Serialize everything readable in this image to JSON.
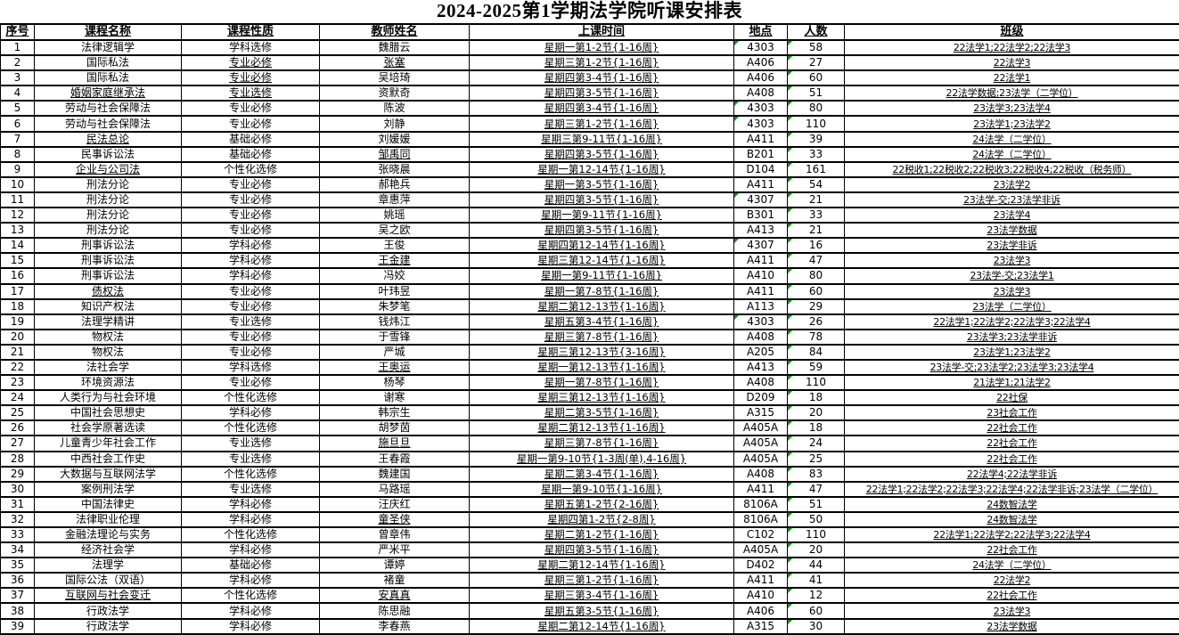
{
  "title": "2024-2025第1学期法学院听课安排表",
  "colors": {
    "flag_green": "#109410",
    "border": "#000000",
    "background": "#ffffff"
  },
  "table": {
    "headers": [
      "序号",
      "课程名称",
      "课程性质",
      "教师姓名",
      "上课时间",
      "地点",
      "人数",
      "班级"
    ],
    "rows": [
      {
        "no": "1",
        "course": "法律逻辑学",
        "nature": "学科选修",
        "teacher": "魏腊云",
        "time": "星期一第1-2节{1-16周}",
        "room": "4303",
        "count": "58",
        "classes": "22法学1;22法学2;22法学3",
        "rf": true
      },
      {
        "no": "2",
        "course": "国际私法",
        "nature": "专业必修",
        "teacher": "张塞",
        "time": "星期三第1-2节{1-16周}",
        "room": "A406",
        "count": "27",
        "classes": "22法学3",
        "un": true,
        "ut": true
      },
      {
        "no": "3",
        "course": "国际私法",
        "nature": "专业必修",
        "teacher": "吴培琦",
        "time": "星期四第3-4节{1-16周}",
        "room": "A406",
        "count": "60",
        "classes": "22法学1",
        "un": true
      },
      {
        "no": "4",
        "course": "婚姻家庭继承法",
        "nature": "专业选修",
        "teacher": "资默奇",
        "time": "星期四第3-5节{1-16周}",
        "room": "A408",
        "count": "51",
        "classes": "22法学数据;23法学（二学位）",
        "uc": true,
        "un": true
      },
      {
        "no": "5",
        "course": "劳动与社会保障法",
        "nature": "专业必修",
        "teacher": "陈波",
        "time": "星期四第3-4节{1-16周}",
        "room": "4303",
        "count": "80",
        "classes": "23法学3;23法学4",
        "rf": true
      },
      {
        "no": "6",
        "course": "劳动与社会保障法",
        "nature": "专业必修",
        "teacher": "刘静",
        "time": "星期三第1-2节{1-16周}",
        "room": "4303",
        "count": "110",
        "classes": "23法学1;23法学2",
        "rf": true
      },
      {
        "no": "7",
        "course": "民法总论",
        "nature": "基础必修",
        "teacher": "刘媛媛",
        "time": "星期三第9-11节{1-16周}",
        "room": "A411",
        "count": "39",
        "classes": "24法学（二学位）",
        "uc": true
      },
      {
        "no": "8",
        "course": "民事诉讼法",
        "nature": "基础必修",
        "teacher": "邹禹同",
        "time": "星期四第3-5节{1-16周}",
        "room": "B201",
        "count": "33",
        "classes": "24法学（二学位）",
        "ut": true
      },
      {
        "no": "9",
        "course": "企业与公司法",
        "nature": "个性化选修",
        "teacher": "张晓晨",
        "time": "星期一第12-14节{1-16周}",
        "room": "D104",
        "count": "161",
        "classes": "22税收1;22税收2;22税收3;22税收4;22税收（税务师）",
        "uc": true
      },
      {
        "no": "10",
        "course": "刑法分论",
        "nature": "专业必修",
        "teacher": "郝艳兵",
        "time": "星期一第3-5节{1-16周}",
        "room": "A411",
        "count": "54",
        "classes": "23法学2"
      },
      {
        "no": "11",
        "course": "刑法分论",
        "nature": "专业必修",
        "teacher": "章惠萍",
        "time": "星期四第3-5节{1-16周}",
        "room": "4307",
        "count": "21",
        "classes": "23法学-交;23法学非诉",
        "rf": true
      },
      {
        "no": "12",
        "course": "刑法分论",
        "nature": "专业必修",
        "teacher": "姚瑶",
        "time": "星期一第9-11节{1-16周}",
        "room": "B301",
        "count": "33",
        "classes": "23法学4"
      },
      {
        "no": "13",
        "course": "刑法分论",
        "nature": "专业必修",
        "teacher": "吴之欧",
        "time": "星期四第3-5节{1-16周}",
        "room": "A413",
        "count": "21",
        "classes": "23法学数据"
      },
      {
        "no": "14",
        "course": "刑事诉讼法",
        "nature": "学科必修",
        "teacher": "王俊",
        "time": "星期四第12-14节{1-16周}",
        "room": "4307",
        "count": "16",
        "classes": "23法学非诉",
        "rf": true
      },
      {
        "no": "15",
        "course": "刑事诉讼法",
        "nature": "学科必修",
        "teacher": "王金建",
        "time": "星期三第12-14节{1-16周}",
        "room": "A411",
        "count": "47",
        "classes": "23法学3",
        "ut": true
      },
      {
        "no": "16",
        "course": "刑事诉讼法",
        "nature": "学科必修",
        "teacher": "冯姣",
        "time": "星期一第9-11节{1-16周}",
        "room": "A410",
        "count": "80",
        "classes": "23法学-交;23法学1"
      },
      {
        "no": "17",
        "course": "债权法",
        "nature": "专业必修",
        "teacher": "叶玮昱",
        "time": "星期一第7-8节{1-16周}",
        "room": "A411",
        "count": "60",
        "classes": "23法学3",
        "uc": true
      },
      {
        "no": "18",
        "course": "知识产权法",
        "nature": "专业必修",
        "teacher": "朱梦笔",
        "time": "星期二第12-13节{1-16周}",
        "room": "A113",
        "count": "29",
        "classes": "23法学（二学位）"
      },
      {
        "no": "19",
        "course": "法理学精讲",
        "nature": "专业选修",
        "teacher": "钱炜江",
        "time": "星期五第3-4节{1-16周}",
        "room": "4303",
        "count": "26",
        "classes": "22法学1;22法学2;22法学3;22法学4",
        "rf": true
      },
      {
        "no": "20",
        "course": "物权法",
        "nature": "专业必修",
        "teacher": "于雪锋",
        "time": "星期三第7-8节{1-16周}",
        "room": "A408",
        "count": "78",
        "classes": "23法学3;23法学非诉"
      },
      {
        "no": "21",
        "course": "物权法",
        "nature": "专业必修",
        "teacher": "严城",
        "time": "星期三第12-13节{3-16周}",
        "room": "A205",
        "count": "84",
        "classes": "23法学1;23法学2"
      },
      {
        "no": "22",
        "course": "法社会学",
        "nature": "学科选修",
        "teacher": "王奥运",
        "time": "星期一第12-13节{1-16周}",
        "room": "A413",
        "count": "59",
        "classes": "23法学-交;23法学2;23法学3;23法学4",
        "ut": true
      },
      {
        "no": "23",
        "course": "环境资源法",
        "nature": "专业必修",
        "teacher": "杨琴",
        "time": "星期一第7-8节{1-16周}",
        "room": "A408",
        "count": "110",
        "classes": "21法学1;21法学2"
      },
      {
        "no": "24",
        "course": "人类行为与社会环境",
        "nature": "个性化选修",
        "teacher": "谢寒",
        "time": "星期三第12-13节{1-16周}",
        "room": "D209",
        "count": "18",
        "classes": "22社保"
      },
      {
        "no": "25",
        "course": "中国社会思想史",
        "nature": "学科必修",
        "teacher": "韩宗生",
        "time": "星期二第3-5节{1-16周}",
        "room": "A315",
        "count": "20",
        "classes": "23社会工作"
      },
      {
        "no": "26",
        "course": "社会学原著选读",
        "nature": "个性化选修",
        "teacher": "胡梦茵",
        "time": "星期二第12-13节{1-16周}",
        "room": "A405A",
        "count": "18",
        "classes": "22社会工作"
      },
      {
        "no": "27",
        "course": "儿童青少年社会工作",
        "nature": "专业选修",
        "teacher": "施旦旦",
        "time": "星期三第7-8节{1-16周}",
        "room": "A405A",
        "count": "24",
        "classes": "22社会工作",
        "ut": true
      },
      {
        "no": "28",
        "course": "中西社会工作史",
        "nature": "专业选修",
        "teacher": "王春霞",
        "time": "星期一第9-10节{1-3周(单),4-16周}",
        "room": "A405A",
        "count": "25",
        "classes": "22社会工作"
      },
      {
        "no": "29",
        "course": "大数据与互联网法学",
        "nature": "个性化选修",
        "teacher": "魏建国",
        "time": "星期二第3-4节{1-16周}",
        "room": "A408",
        "count": "83",
        "classes": "22法学4;22法学非诉"
      },
      {
        "no": "30",
        "course": "案例刑法学",
        "nature": "专业选修",
        "teacher": "马路瑶",
        "time": "星期一第9-10节{1-16周}",
        "room": "A411",
        "count": "47",
        "classes": "22法学1;22法学2;22法学3;22法学4;22法学非诉;23法学（二学位）"
      },
      {
        "no": "31",
        "course": "中国法律史",
        "nature": "学科必修",
        "teacher": "汪庆红",
        "time": "星期五第1-2节{2-16周}",
        "room": "8106A",
        "count": "51",
        "classes": "24数智法学"
      },
      {
        "no": "32",
        "course": "法律职业伦理",
        "nature": "学科必修",
        "teacher": "童圣侠",
        "time": "星期四第1-2节{2-8周}",
        "room": "8106A",
        "count": "50",
        "classes": "24数智法学",
        "ut": true
      },
      {
        "no": "33",
        "course": "金融法理论与实务",
        "nature": "个性化选修",
        "teacher": "曾章伟",
        "time": "星期二第1-2节{1-16周}",
        "room": "C102",
        "count": "110",
        "classes": "22法学1;22法学2;22法学3;22法学4"
      },
      {
        "no": "34",
        "course": "经济社会学",
        "nature": "学科必修",
        "teacher": "严米平",
        "time": "星期四第3-5节{1-16周}",
        "room": "A405A",
        "count": "20",
        "classes": "22社会工作"
      },
      {
        "no": "35",
        "course": "法理学",
        "nature": "基础必修",
        "teacher": "谭婷",
        "time": "星期二第12-14节{1-16周}",
        "room": "D402",
        "count": "44",
        "classes": "24法学（二学位）"
      },
      {
        "no": "36",
        "course": "国际公法（双语）",
        "nature": "学科必修",
        "teacher": "褚童",
        "time": "星期三第1-2节{1-16周}",
        "room": "A411",
        "count": "41",
        "classes": "22法学2"
      },
      {
        "no": "37",
        "course": "互联网与社会变迁",
        "nature": "个性化选修",
        "teacher": "安真真",
        "time": "星期三第3-4节{1-16周}",
        "room": "A410",
        "count": "12",
        "classes": "22社会工作",
        "uc": true,
        "ut": true
      },
      {
        "no": "38",
        "course": "行政法学",
        "nature": "学科必修",
        "teacher": "陈思融",
        "time": "星期五第3-5节{1-16周}",
        "room": "A406",
        "count": "60",
        "classes": "23法学3"
      },
      {
        "no": "39",
        "course": "行政法学",
        "nature": "学科必修",
        "teacher": "李春燕",
        "time": "星期二第12-14节{1-16周}",
        "room": "A315",
        "count": "30",
        "classes": "23法学数据"
      }
    ]
  }
}
